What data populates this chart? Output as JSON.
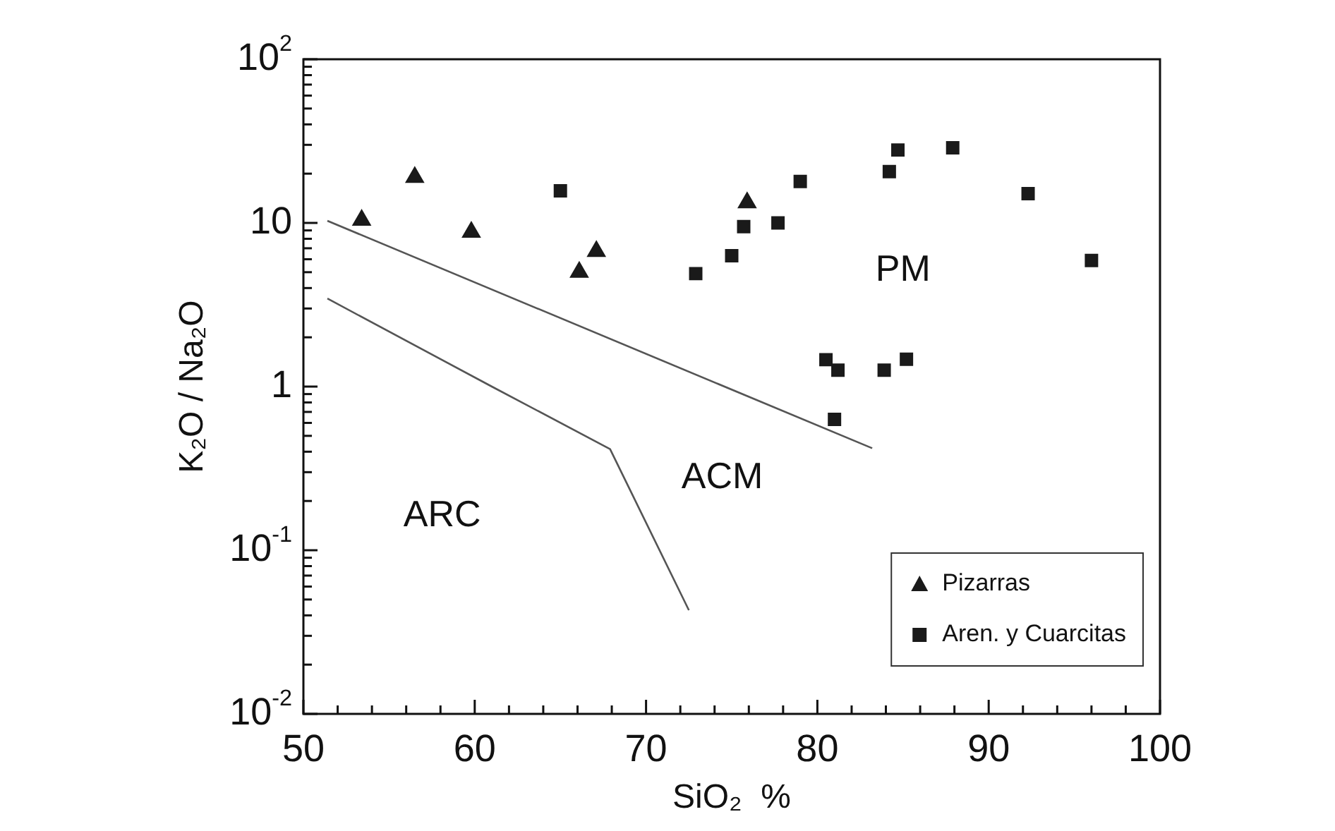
{
  "chart_data": {
    "type": "scatter",
    "xlabel": "SiO₂  %",
    "ylabel": "K₂O / Na₂O",
    "log": "y",
    "xlim": [
      50,
      100
    ],
    "xticks": [
      50,
      {
        "value": 52,
        "label": null
      },
      {
        "value": 54,
        "label": null
      },
      {
        "value": 56,
        "label": null
      },
      {
        "value": 58,
        "label": null
      },
      60,
      {
        "value": 62,
        "label": null
      },
      {
        "value": 64,
        "label": null
      },
      {
        "value": 66,
        "label": null
      },
      {
        "value": 68,
        "label": null
      },
      70,
      {
        "value": 72,
        "label": null
      },
      {
        "value": 74,
        "label": null
      },
      {
        "value": 76,
        "label": null
      },
      {
        "value": 78,
        "label": null
      },
      80,
      {
        "value": 82,
        "label": null
      },
      {
        "value": 84,
        "label": null
      },
      {
        "value": 86,
        "label": null
      },
      {
        "value": 88,
        "label": null
      },
      90,
      {
        "value": 92,
        "label": null
      },
      {
        "value": 94,
        "label": null
      },
      {
        "value": 96,
        "label": null
      },
      {
        "value": 98,
        "label": null
      },
      100
    ],
    "ylim": [
      0.01,
      100
    ],
    "yticks": [
      {
        "value": 0.01,
        "label": "10$^{-2}$"
      },
      {
        "value": 0.02,
        "label": null
      },
      {
        "value": 0.03,
        "label": null
      },
      {
        "value": 0.04,
        "label": null
      },
      {
        "value": 0.05,
        "label": null
      },
      {
        "value": 0.06,
        "label": null
      },
      {
        "value": 0.07,
        "label": null
      },
      {
        "value": 0.08,
        "label": null
      },
      {
        "value": 0.09,
        "label": null
      },
      {
        "value": 0.1,
        "label": "10$^{-1}$"
      },
      {
        "value": 0.2,
        "label": null
      },
      {
        "value": 0.3,
        "label": null
      },
      {
        "value": 0.4,
        "label": null
      },
      {
        "value": 0.5,
        "label": null
      },
      {
        "value": 0.6,
        "label": null
      },
      {
        "value": 0.7,
        "label": null
      },
      {
        "value": 0.8,
        "label": null
      },
      {
        "value": 0.9,
        "label": null
      },
      1,
      {
        "value": 2,
        "label": null
      },
      {
        "value": 3,
        "label": null
      },
      {
        "value": 4,
        "label": null
      },
      {
        "value": 5,
        "label": null
      },
      {
        "value": 6,
        "label": null
      },
      {
        "value": 7,
        "label": null
      },
      {
        "value": 8,
        "label": null
      },
      {
        "value": 9,
        "label": null
      },
      10,
      {
        "value": 20,
        "label": null
      },
      {
        "value": 30,
        "label": null
      },
      {
        "value": 40,
        "label": null
      },
      {
        "value": 50,
        "label": null
      },
      {
        "value": 60,
        "label": null
      },
      {
        "value": 70,
        "label": null
      },
      {
        "value": 80,
        "label": null
      },
      {
        "value": 90,
        "label": null
      },
      {
        "value": 100,
        "label": "10$^{2}$"
      }
    ],
    "grid": false,
    "legend": "bottom right",
    "series": [
      {
        "name": "Pizarras",
        "color": "#1a1a1a",
        "marker": "triangle",
        "x": [
          53.4,
          56.5,
          59.8,
          66.1,
          67.1,
          75.9
        ],
        "values": [
          10.4,
          19,
          8.8,
          5.0,
          6.7,
          13.3
        ]
      },
      {
        "name": "Aren. y Cuarcitas",
        "color": "#1a1a1a",
        "marker": "square",
        "x": [
          65.0,
          72.9,
          75.0,
          75.7,
          77.7,
          79.0,
          84.7,
          84.2,
          87.9,
          92.3,
          96.0,
          80.5,
          81.2,
          83.9,
          85.2,
          81.0
        ],
        "values": [
          15.7,
          4.9,
          6.3,
          9.5,
          10,
          17.9,
          27.9,
          20.6,
          28.8,
          15.1,
          5.9,
          1.46,
          1.26,
          1.26,
          1.47,
          0.63
        ]
      },
      {
        "type": "line",
        "color": "#555555",
        "marker": "none",
        "x": [
          51.4,
          83.2
        ],
        "values": [
          10.3,
          0.42
        ]
      },
      {
        "type": "line",
        "color": "#555555",
        "marker": "none",
        "x": [
          51.4,
          61.0,
          67.9,
          72.5
        ],
        "values": [
          3.45,
          1.0,
          0.415,
          0.043
        ]
      }
    ],
    "annotations": [
      "ARC",
      "ACM",
      "PM"
    ]
  }
}
